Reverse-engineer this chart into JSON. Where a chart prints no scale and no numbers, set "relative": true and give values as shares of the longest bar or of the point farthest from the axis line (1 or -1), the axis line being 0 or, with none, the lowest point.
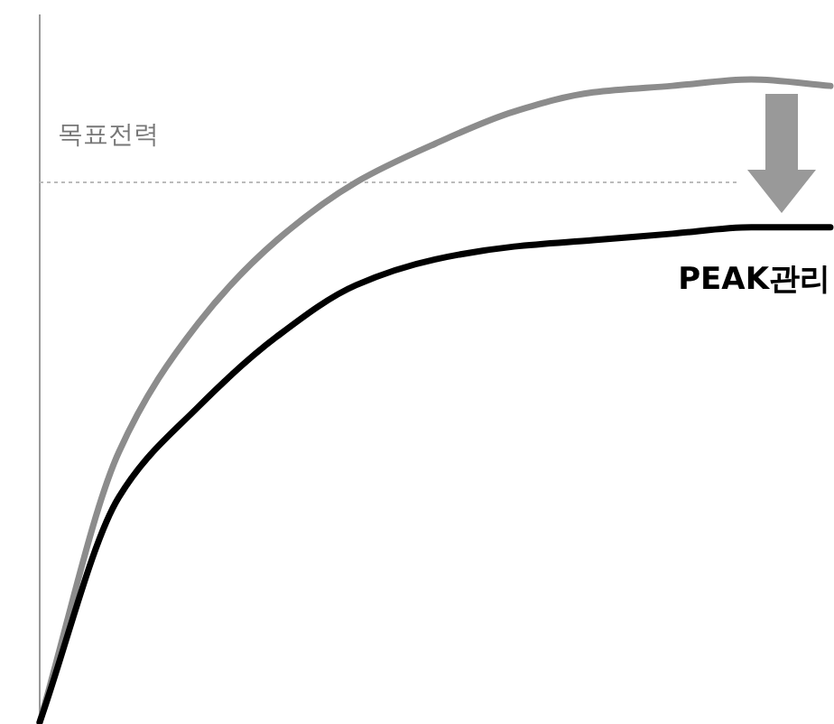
{
  "chart_data": {
    "type": "line",
    "relative": true,
    "categories": [
      null,
      null,
      null,
      null,
      null,
      null,
      null,
      null,
      null,
      null,
      null
    ],
    "series": [
      {
        "color": "#8c8c8c",
        "values": [
          0,
          0.42,
          0.62,
          0.75,
          0.84,
          0.9,
          0.95,
          0.98,
          0.99,
          1,
          0.99
        ]
      },
      {
        "name": "PEAK관리",
        "color": "#000000",
        "values": [
          0,
          0.35,
          0.49,
          0.6,
          0.68,
          0.72,
          0.74,
          0.75,
          0.76,
          0.77,
          0.77
        ]
      }
    ],
    "ref_lines": [
      {
        "axis": "y",
        "value": 0.84,
        "label": "목표전력",
        "color": "#bbbbbb",
        "line_style": "dotted"
      }
    ]
  }
}
